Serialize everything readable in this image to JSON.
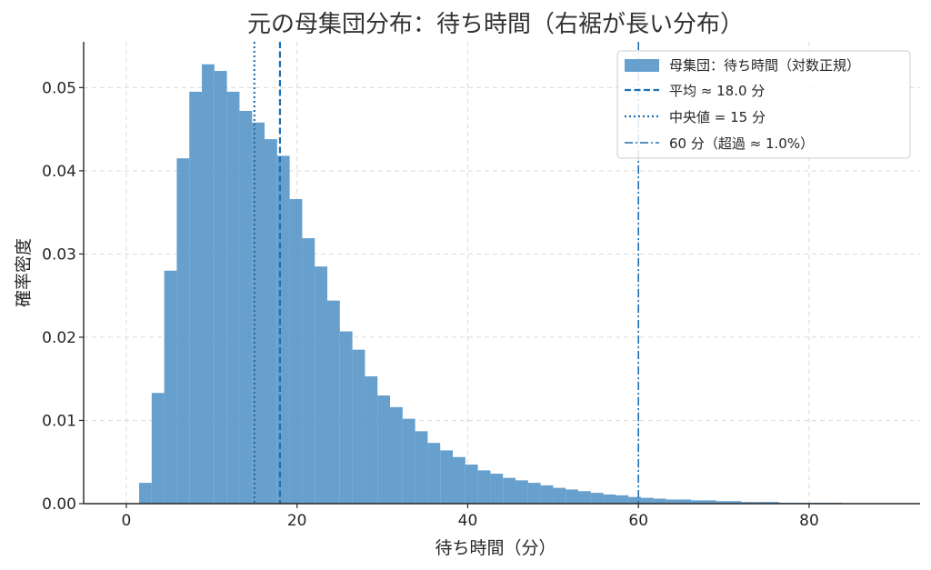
{
  "chart_data": {
    "type": "bar",
    "title": "元の母集団分布：待ち時間（右裾が長い分布）",
    "xlabel": "待ち時間（分）",
    "ylabel": "確率密度",
    "xlim": [
      -5,
      93
    ],
    "ylim": [
      0,
      0.0555
    ],
    "xticks": [
      0,
      20,
      40,
      60,
      80
    ],
    "xtick_labels": [
      "0",
      "20",
      "40",
      "60",
      "80"
    ],
    "yticks": [
      0.0,
      0.01,
      0.02,
      0.03,
      0.04,
      0.05
    ],
    "ytick_labels": [
      "0.00",
      "0.01",
      "0.02",
      "0.03",
      "0.04",
      "0.05"
    ],
    "grid": true,
    "legend_position": "top-right",
    "bar_color": "#4c8fc4",
    "line_color": "#1f6fb2",
    "bin_width": 1.47,
    "bins_left": [
      1.5,
      2.97,
      4.44,
      5.91,
      7.38,
      8.85,
      10.32,
      11.79,
      13.26,
      14.73,
      16.2,
      17.67,
      19.14,
      20.61,
      22.08,
      23.55,
      25.02,
      26.49,
      27.96,
      29.43,
      30.9,
      32.37,
      33.84,
      35.31,
      36.78,
      38.25,
      39.72,
      41.19,
      42.66,
      44.13,
      45.6,
      47.07,
      48.54,
      50.01,
      51.48,
      52.95,
      54.42,
      55.89,
      57.36,
      58.83,
      60.3,
      61.77,
      63.24,
      64.71,
      66.18,
      67.65,
      69.12,
      70.59,
      72.06,
      73.53,
      75.0,
      76.47,
      77.94,
      79.41,
      80.88,
      82.35,
      83.82,
      85.29,
      86.76
    ],
    "values": [
      0.0025,
      0.0133,
      0.028,
      0.0415,
      0.0495,
      0.0528,
      0.052,
      0.0495,
      0.0472,
      0.0458,
      0.0438,
      0.0418,
      0.0366,
      0.0319,
      0.0285,
      0.0244,
      0.0207,
      0.0185,
      0.0153,
      0.013,
      0.0116,
      0.0102,
      0.0087,
      0.0073,
      0.0064,
      0.0056,
      0.0047,
      0.004,
      0.0036,
      0.0031,
      0.0028,
      0.0025,
      0.0022,
      0.0019,
      0.0017,
      0.0015,
      0.0013,
      0.0011,
      0.001,
      0.0008,
      0.0007,
      0.0006,
      0.0005,
      0.0005,
      0.0004,
      0.0004,
      0.0003,
      0.0003,
      0.0002,
      0.0002,
      0.0002,
      0.0001,
      0.0001,
      0.0001,
      0.0001,
      0.0001,
      0.0,
      0.0,
      0.0
    ],
    "reference_lines": [
      {
        "name": "平均 ≈ 18.0 分",
        "x": 18.0,
        "style": "dashed"
      },
      {
        "name": "中央値 = 15 分",
        "x": 15.0,
        "style": "dotted"
      },
      {
        "name": "60 分（超過 ≈ 1.0%）",
        "x": 60.0,
        "style": "dashdot"
      }
    ],
    "legend": [
      {
        "label": "母集団：待ち時間（対数正規）",
        "kind": "patch"
      },
      {
        "label": "平均 ≈ 18.0 分",
        "kind": "dashed"
      },
      {
        "label": "中央値 = 15 分",
        "kind": "dotted"
      },
      {
        "label": "60 分（超過 ≈ 1.0%）",
        "kind": "dashdot"
      }
    ]
  }
}
